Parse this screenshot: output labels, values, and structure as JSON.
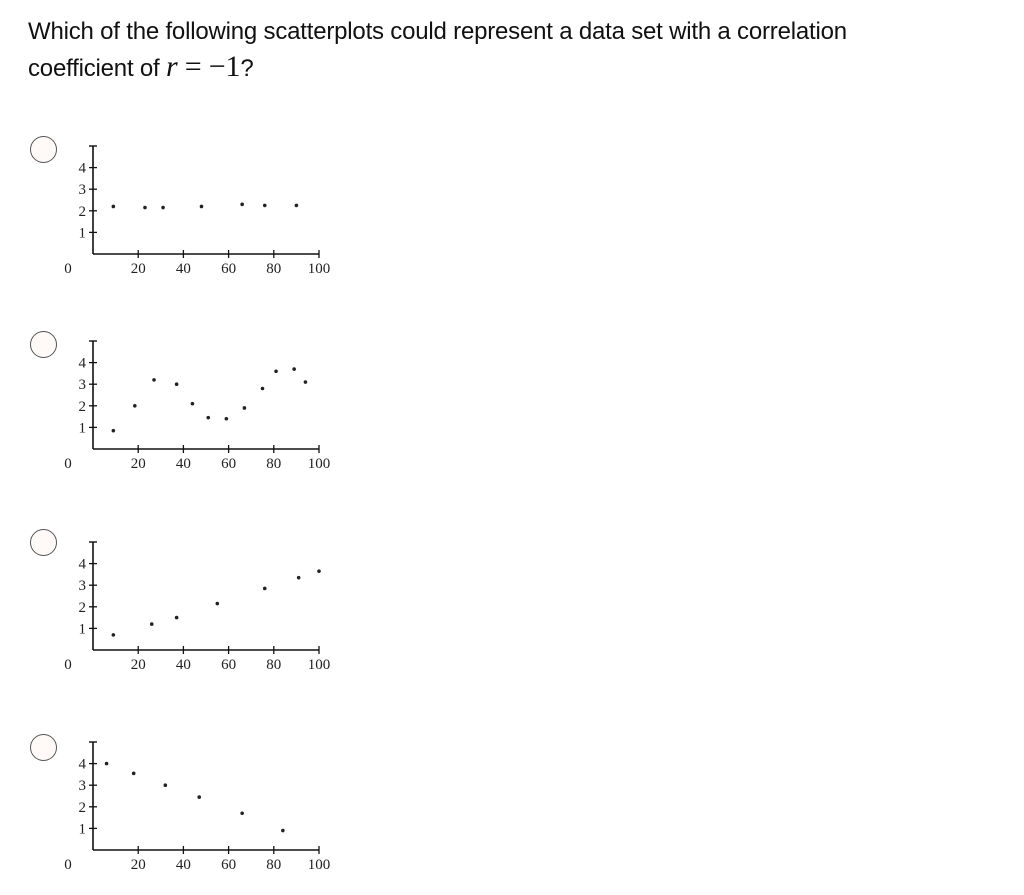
{
  "question": {
    "text_part1": "Which of the following scatterplots could represent a data set with a correlation",
    "text_part2": "coefficient of ",
    "var": "r",
    "equals": " = ",
    "value": "−1",
    "end": "?"
  },
  "options": [
    {
      "id": "A",
      "selected": false
    },
    {
      "id": "B",
      "selected": false
    },
    {
      "id": "C",
      "selected": false
    },
    {
      "id": "D",
      "selected": false
    }
  ],
  "axes": {
    "x_ticks": [
      "20",
      "40",
      "60",
      "80",
      "100"
    ],
    "y_ticks": [
      "1",
      "2",
      "3",
      "4"
    ],
    "origin_label": "0"
  },
  "chart_data": [
    {
      "type": "scatter",
      "title": "",
      "xlabel": "",
      "ylabel": "",
      "xlim": [
        0,
        100
      ],
      "ylim": [
        0,
        4.8
      ],
      "x_ticks": [
        20,
        40,
        60,
        80,
        100
      ],
      "y_ticks": [
        1,
        2,
        3,
        4
      ],
      "grid": false,
      "x": [
        9,
        23,
        31,
        48,
        66,
        76,
        90
      ],
      "y": [
        2.2,
        2.15,
        2.15,
        2.2,
        2.3,
        2.25,
        2.25
      ]
    },
    {
      "type": "scatter",
      "title": "",
      "xlabel": "",
      "ylabel": "",
      "xlim": [
        0,
        100
      ],
      "ylim": [
        0,
        4.8
      ],
      "x_ticks": [
        20,
        40,
        60,
        80,
        100
      ],
      "y_ticks": [
        1,
        2,
        3,
        4
      ],
      "grid": false,
      "x": [
        9,
        18.5,
        27,
        37,
        44,
        51,
        59,
        67,
        75,
        81,
        89,
        94
      ],
      "y": [
        0.85,
        2.0,
        3.2,
        3.0,
        2.1,
        1.45,
        1.4,
        1.9,
        2.8,
        3.6,
        3.7,
        3.1
      ]
    },
    {
      "type": "scatter",
      "title": "",
      "xlabel": "",
      "ylabel": "",
      "xlim": [
        0,
        100
      ],
      "ylim": [
        0,
        4.8
      ],
      "x_ticks": [
        20,
        40,
        60,
        80,
        100
      ],
      "y_ticks": [
        1,
        2,
        3,
        4
      ],
      "grid": false,
      "x": [
        9,
        26,
        37,
        55,
        76,
        91,
        100
      ],
      "y": [
        0.7,
        1.2,
        1.5,
        2.15,
        2.85,
        3.35,
        3.65
      ]
    },
    {
      "type": "scatter",
      "title": "",
      "xlabel": "",
      "ylabel": "",
      "xlim": [
        0,
        100
      ],
      "ylim": [
        0,
        4.8
      ],
      "x_ticks": [
        20,
        40,
        60,
        80,
        100
      ],
      "y_ticks": [
        1,
        2,
        3,
        4
      ],
      "grid": false,
      "x": [
        6,
        18,
        32,
        47,
        66,
        84
      ],
      "y": [
        4.0,
        3.55,
        3.0,
        2.45,
        1.7,
        0.9
      ]
    }
  ]
}
